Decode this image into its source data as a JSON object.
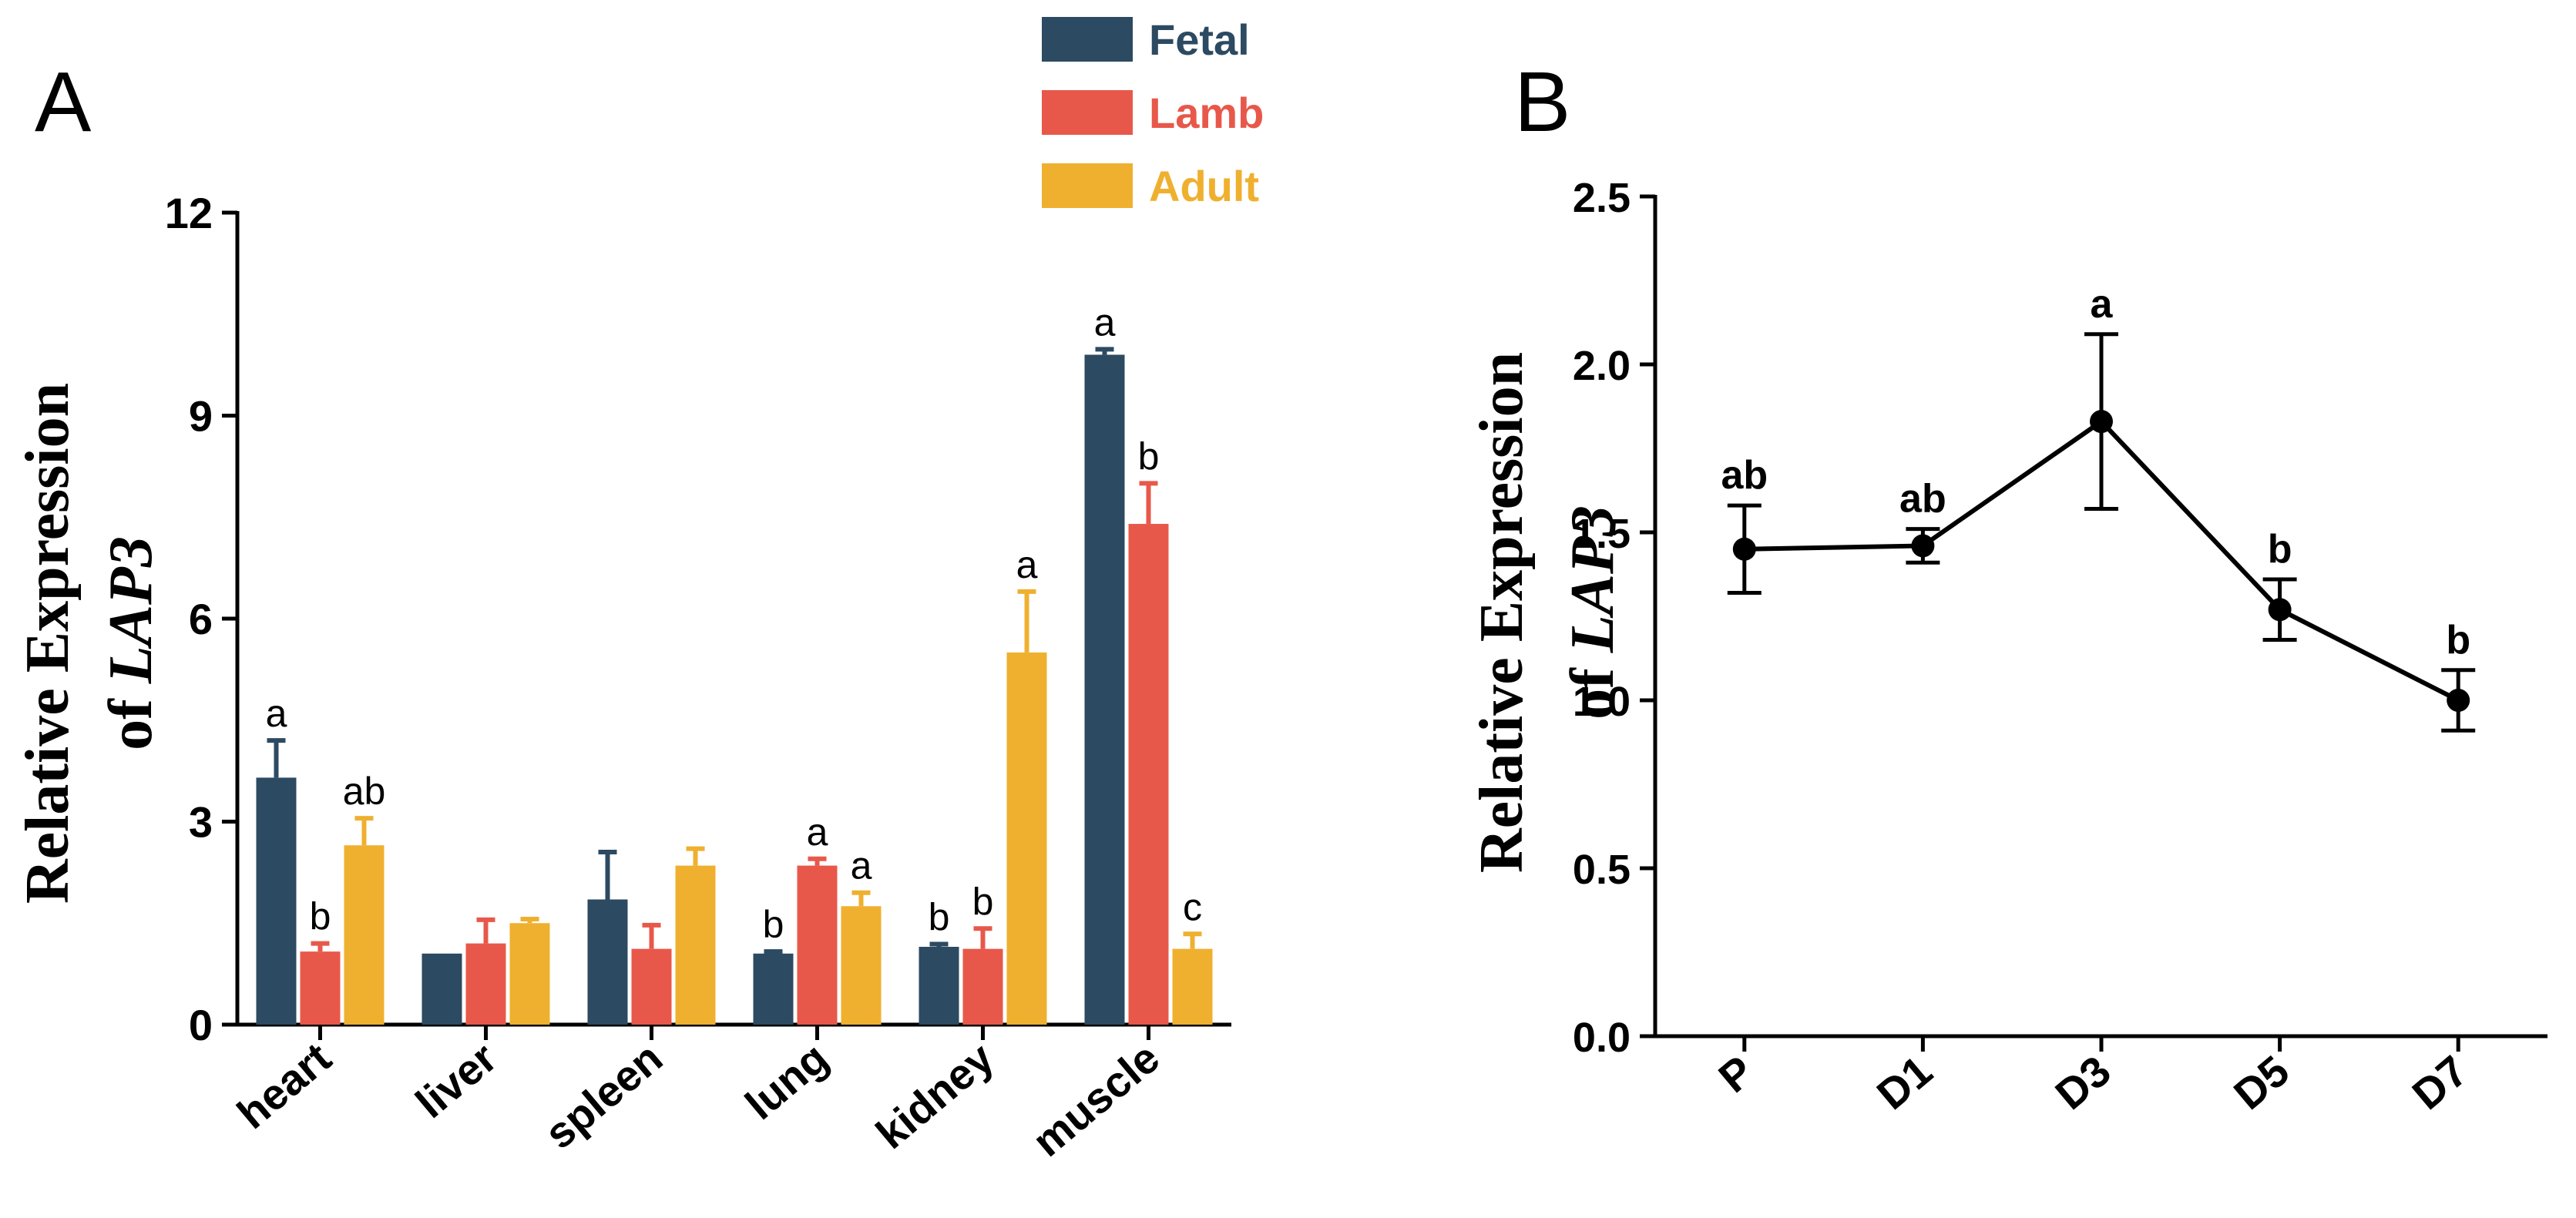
{
  "colors": {
    "fetal": "#2c4a61",
    "lamb": "#e8584a",
    "adult": "#efb02f",
    "axis": "#000000"
  },
  "chart_data": [
    {
      "type": "bar",
      "panel_label": "A",
      "ylabel_line1": "Relative Expression",
      "ylabel_line2_prefix": "of ",
      "ylabel_gene": "LAP3",
      "ylim": [
        0,
        12
      ],
      "yticks": [
        "0",
        "3",
        "6",
        "9",
        "12"
      ],
      "ytick_values": [
        0,
        3,
        6,
        9,
        12
      ],
      "categories": [
        "heart",
        "liver",
        "spleen",
        "lung",
        "kidney",
        "muscle"
      ],
      "legend": [
        "Fetal",
        "Lamb",
        "Adult"
      ],
      "series": [
        {
          "name": "Fetal",
          "values": [
            3.65,
            1.05,
            1.85,
            1.05,
            1.15,
            9.9
          ],
          "errors": [
            0.55,
            0,
            0.7,
            0.03,
            0.04,
            0.08
          ],
          "labels": [
            "a",
            "",
            "",
            "b",
            "b",
            "a"
          ]
        },
        {
          "name": "Lamb",
          "values": [
            1.08,
            1.2,
            1.12,
            2.35,
            1.12,
            7.4
          ],
          "errors": [
            0.12,
            0.35,
            0.35,
            0.1,
            0.3,
            0.6
          ],
          "labels": [
            "b",
            "",
            "",
            "a",
            "b",
            "b"
          ]
        },
        {
          "name": "Adult",
          "values": [
            2.65,
            1.5,
            2.35,
            1.75,
            5.5,
            1.12
          ],
          "errors": [
            0.4,
            0.06,
            0.25,
            0.2,
            0.9,
            0.22
          ],
          "labels": [
            "ab",
            "",
            "",
            "a",
            "a",
            "c"
          ]
        }
      ]
    },
    {
      "type": "line",
      "panel_label": "B",
      "ylabel_line1": "Relative Expression",
      "ylabel_line2_prefix": "of ",
      "ylabel_gene": "LAP3",
      "ylim": [
        0,
        2.5
      ],
      "yticks": [
        "0.0",
        "0.5",
        "1.0",
        "1.5",
        "2.0",
        "2.5"
      ],
      "ytick_values": [
        0,
        0.5,
        1.0,
        1.5,
        2.0,
        2.5
      ],
      "categories": [
        "P",
        "D1",
        "D3",
        "D5",
        "D7"
      ],
      "values": [
        1.45,
        1.46,
        1.83,
        1.27,
        1.0
      ],
      "errors": [
        0.13,
        0.05,
        0.26,
        0.09,
        0.09
      ],
      "labels": [
        "ab",
        "ab",
        "a",
        "b",
        "b"
      ]
    }
  ]
}
